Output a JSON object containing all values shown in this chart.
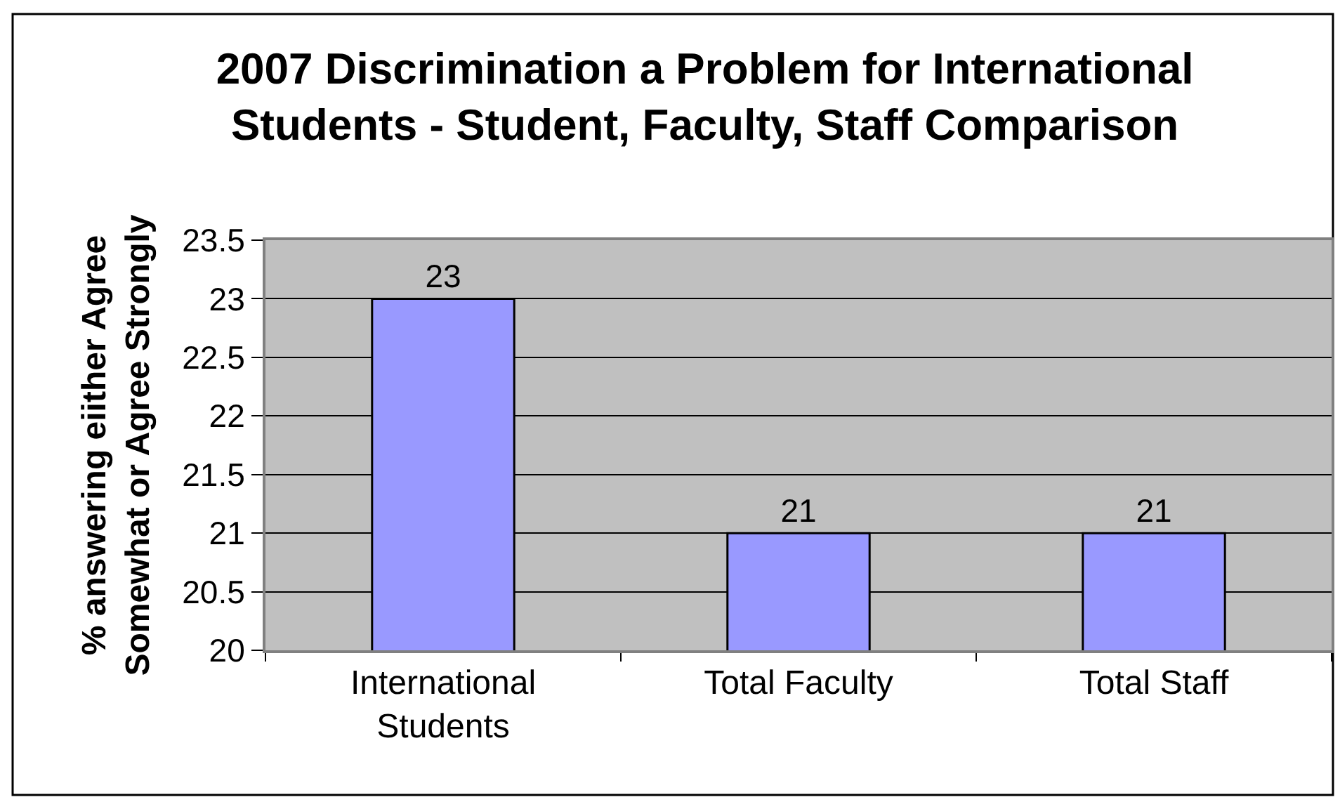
{
  "chart_data": {
    "type": "bar",
    "title": "2007 Discrimination a Problem for International Students - Student, Faculty, Staff Comparison",
    "ylabel": "% answering eiither Agree Somewhat or Agree Strongly",
    "categories": [
      "International Students",
      "Total Faculty",
      "Total Staff"
    ],
    "values": [
      23,
      21,
      21
    ],
    "color": "#9999ff",
    "ylim": [
      20,
      23.5
    ],
    "yticks": [
      20,
      20.5,
      21,
      21.5,
      22,
      22.5,
      23,
      23.5
    ],
    "grid": "y",
    "data_labels": true
  }
}
